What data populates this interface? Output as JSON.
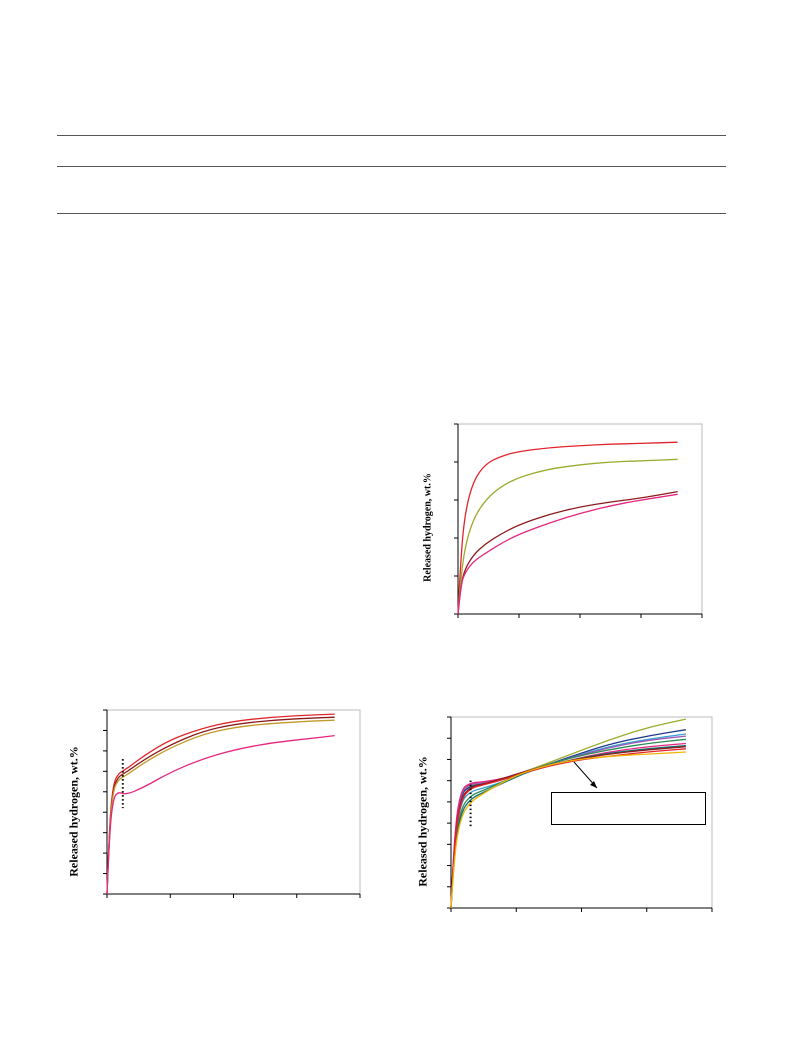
{
  "table_rules": 3,
  "chart_data": [
    {
      "type": "line",
      "ylabel": "Released hydrogen, wt.%",
      "xlim": [
        0,
        4
      ],
      "ylim": [
        0,
        5
      ],
      "xticks": 4,
      "yticks": 5,
      "series": [
        {
          "color": "#e0262b",
          "points": [
            [
              0,
              0
            ],
            [
              0.05,
              1.6
            ],
            [
              0.12,
              2.7
            ],
            [
              0.25,
              3.5
            ],
            [
              0.45,
              3.95
            ],
            [
              0.7,
              4.15
            ],
            [
              1.0,
              4.28
            ],
            [
              1.5,
              4.38
            ],
            [
              2.0,
              4.43
            ],
            [
              2.5,
              4.47
            ],
            [
              3.0,
              4.49
            ],
            [
              3.6,
              4.52
            ]
          ]
        },
        {
          "color": "#9aab2c",
          "points": [
            [
              0,
              0
            ],
            [
              0.05,
              1.0
            ],
            [
              0.12,
              1.8
            ],
            [
              0.25,
              2.5
            ],
            [
              0.45,
              3.0
            ],
            [
              0.7,
              3.35
            ],
            [
              1.0,
              3.6
            ],
            [
              1.5,
              3.82
            ],
            [
              2.0,
              3.93
            ],
            [
              2.5,
              4.0
            ],
            [
              3.0,
              4.03
            ],
            [
              3.6,
              4.07
            ]
          ]
        },
        {
          "color": "#8b1c1c",
          "points": [
            [
              0,
              0
            ],
            [
              0.05,
              0.8
            ],
            [
              0.12,
              1.2
            ],
            [
              0.25,
              1.55
            ],
            [
              0.45,
              1.85
            ],
            [
              0.7,
              2.1
            ],
            [
              1.0,
              2.35
            ],
            [
              1.5,
              2.63
            ],
            [
              2.0,
              2.82
            ],
            [
              2.5,
              2.95
            ],
            [
              3.0,
              3.05
            ],
            [
              3.6,
              3.22
            ]
          ]
        },
        {
          "color": "#e5267f",
          "points": [
            [
              0,
              0
            ],
            [
              0.05,
              0.8
            ],
            [
              0.12,
              1.1
            ],
            [
              0.25,
              1.38
            ],
            [
              0.45,
              1.6
            ],
            [
              0.7,
              1.85
            ],
            [
              1.0,
              2.1
            ],
            [
              1.5,
              2.4
            ],
            [
              2.0,
              2.65
            ],
            [
              2.5,
              2.85
            ],
            [
              3.0,
              3.0
            ],
            [
              3.6,
              3.15
            ]
          ]
        }
      ]
    },
    {
      "type": "line",
      "ylabel": "Released hydrogen, wt.%",
      "xlim": [
        0,
        4
      ],
      "ylim": [
        0,
        9
      ],
      "xticks": 4,
      "yticks": 9,
      "marker_x": 0.25,
      "series": [
        {
          "color": "#e0262b",
          "points": [
            [
              0,
              0
            ],
            [
              0.04,
              3.5
            ],
            [
              0.1,
              5.4
            ],
            [
              0.18,
              5.9
            ],
            [
              0.3,
              6.1
            ],
            [
              0.6,
              6.8
            ],
            [
              1.0,
              7.55
            ],
            [
              1.5,
              8.1
            ],
            [
              2.0,
              8.45
            ],
            [
              2.6,
              8.65
            ],
            [
              3.2,
              8.75
            ],
            [
              3.6,
              8.8
            ]
          ]
        },
        {
          "color": "#8b1c1c",
          "points": [
            [
              0,
              0
            ],
            [
              0.04,
              3.3
            ],
            [
              0.1,
              5.2
            ],
            [
              0.18,
              5.75
            ],
            [
              0.3,
              5.95
            ],
            [
              0.6,
              6.6
            ],
            [
              1.0,
              7.3
            ],
            [
              1.5,
              7.95
            ],
            [
              2.0,
              8.3
            ],
            [
              2.6,
              8.5
            ],
            [
              3.2,
              8.6
            ],
            [
              3.6,
              8.65
            ]
          ]
        },
        {
          "color": "#c29a2a",
          "points": [
            [
              0,
              0
            ],
            [
              0.04,
              3.2
            ],
            [
              0.1,
              5.1
            ],
            [
              0.18,
              5.6
            ],
            [
              0.3,
              5.8
            ],
            [
              0.6,
              6.45
            ],
            [
              1.0,
              7.15
            ],
            [
              1.5,
              7.8
            ],
            [
              2.0,
              8.15
            ],
            [
              2.6,
              8.35
            ],
            [
              3.2,
              8.45
            ],
            [
              3.6,
              8.5
            ]
          ]
        },
        {
          "color": "#e5267f",
          "points": [
            [
              0,
              0
            ],
            [
              0.04,
              3.0
            ],
            [
              0.1,
              4.7
            ],
            [
              0.18,
              5.0
            ],
            [
              0.3,
              4.85
            ],
            [
              0.6,
              5.25
            ],
            [
              1.0,
              5.95
            ],
            [
              1.5,
              6.6
            ],
            [
              2.0,
              7.05
            ],
            [
              2.6,
              7.4
            ],
            [
              3.2,
              7.6
            ],
            [
              3.6,
              7.75
            ]
          ]
        }
      ]
    },
    {
      "type": "line",
      "ylabel": "Released hydrogen, wt.%",
      "xlim": [
        0,
        4
      ],
      "ylim": [
        0,
        9
      ],
      "xticks": 4,
      "yticks": 9,
      "marker_x": 0.3,
      "series": [
        {
          "color": "#9aab2c",
          "points": [
            [
              0,
              0
            ],
            [
              0.05,
              3.2
            ],
            [
              0.15,
              5.4
            ],
            [
              0.3,
              5.8
            ],
            [
              0.5,
              5.9
            ],
            [
              0.8,
              6.1
            ],
            [
              1.2,
              6.5
            ],
            [
              1.8,
              7.2
            ],
            [
              2.4,
              7.9
            ],
            [
              3.0,
              8.5
            ],
            [
              3.6,
              8.9
            ]
          ]
        },
        {
          "color": "#1f3b8a",
          "points": [
            [
              0,
              0
            ],
            [
              0.05,
              3.3
            ],
            [
              0.15,
              5.4
            ],
            [
              0.3,
              5.75
            ],
            [
              0.5,
              5.85
            ],
            [
              0.8,
              6.05
            ],
            [
              1.2,
              6.45
            ],
            [
              1.8,
              7.1
            ],
            [
              2.4,
              7.7
            ],
            [
              3.0,
              8.1
            ],
            [
              3.6,
              8.4
            ]
          ]
        },
        {
          "color": "#3aa0d0",
          "points": [
            [
              0,
              0
            ],
            [
              0.05,
              3.0
            ],
            [
              0.15,
              5.0
            ],
            [
              0.3,
              5.5
            ],
            [
              0.5,
              5.65
            ],
            [
              0.8,
              5.95
            ],
            [
              1.2,
              6.45
            ],
            [
              1.8,
              7.05
            ],
            [
              2.4,
              7.6
            ],
            [
              3.0,
              7.95
            ],
            [
              3.6,
              8.2
            ]
          ]
        },
        {
          "color": "#9b59b6",
          "points": [
            [
              0,
              0
            ],
            [
              0.05,
              3.4
            ],
            [
              0.15,
              5.5
            ],
            [
              0.3,
              5.85
            ],
            [
              0.5,
              5.9
            ],
            [
              0.8,
              6.1
            ],
            [
              1.2,
              6.5
            ],
            [
              1.8,
              7.05
            ],
            [
              2.4,
              7.55
            ],
            [
              3.0,
              7.9
            ],
            [
              3.6,
              8.1
            ]
          ]
        },
        {
          "color": "#2e8b57",
          "points": [
            [
              0,
              0
            ],
            [
              0.05,
              2.8
            ],
            [
              0.15,
              4.7
            ],
            [
              0.3,
              5.3
            ],
            [
              0.5,
              5.55
            ],
            [
              0.8,
              5.95
            ],
            [
              1.2,
              6.5
            ],
            [
              1.8,
              7.05
            ],
            [
              2.4,
              7.45
            ],
            [
              3.0,
              7.75
            ],
            [
              3.6,
              7.95
            ]
          ]
        },
        {
          "color": "#e5267f",
          "points": [
            [
              0,
              0
            ],
            [
              0.05,
              3.5
            ],
            [
              0.15,
              5.6
            ],
            [
              0.3,
              5.9
            ],
            [
              0.5,
              5.95
            ],
            [
              0.8,
              6.1
            ],
            [
              1.2,
              6.45
            ],
            [
              1.8,
              6.95
            ],
            [
              2.4,
              7.35
            ],
            [
              3.0,
              7.6
            ],
            [
              3.6,
              7.75
            ]
          ]
        },
        {
          "color": "#0f6f6f",
          "points": [
            [
              0,
              0
            ],
            [
              0.05,
              2.6
            ],
            [
              0.15,
              4.5
            ],
            [
              0.3,
              5.15
            ],
            [
              0.5,
              5.45
            ],
            [
              0.8,
              5.9
            ],
            [
              1.2,
              6.45
            ],
            [
              1.8,
              6.95
            ],
            [
              2.4,
              7.3
            ],
            [
              3.0,
              7.5
            ],
            [
              3.6,
              7.65
            ]
          ]
        },
        {
          "color": "#8b1c1c",
          "points": [
            [
              0,
              0
            ],
            [
              0.05,
              3.1
            ],
            [
              0.15,
              5.2
            ],
            [
              0.3,
              5.7
            ],
            [
              0.5,
              5.85
            ],
            [
              0.8,
              6.1
            ],
            [
              1.2,
              6.5
            ],
            [
              1.8,
              6.95
            ],
            [
              2.4,
              7.25
            ],
            [
              3.0,
              7.45
            ],
            [
              3.6,
              7.6
            ]
          ]
        },
        {
          "color": "#e0262b",
          "points": [
            [
              0,
              0
            ],
            [
              0.05,
              3.0
            ],
            [
              0.15,
              5.1
            ],
            [
              0.3,
              5.65
            ],
            [
              0.5,
              5.8
            ],
            [
              0.8,
              6.05
            ],
            [
              1.2,
              6.45
            ],
            [
              1.8,
              6.9
            ],
            [
              2.4,
              7.15
            ],
            [
              3.0,
              7.35
            ],
            [
              3.6,
              7.5
            ]
          ]
        },
        {
          "color": "#f0b400",
          "points": [
            [
              0,
              0
            ],
            [
              0.05,
              2.5
            ],
            [
              0.15,
              4.3
            ],
            [
              0.3,
              5.0
            ],
            [
              0.5,
              5.4
            ],
            [
              0.8,
              5.95
            ],
            [
              1.2,
              6.5
            ],
            [
              1.8,
              6.95
            ],
            [
              2.4,
              7.15
            ],
            [
              3.0,
              7.25
            ],
            [
              3.6,
              7.35
            ]
          ]
        }
      ]
    }
  ]
}
